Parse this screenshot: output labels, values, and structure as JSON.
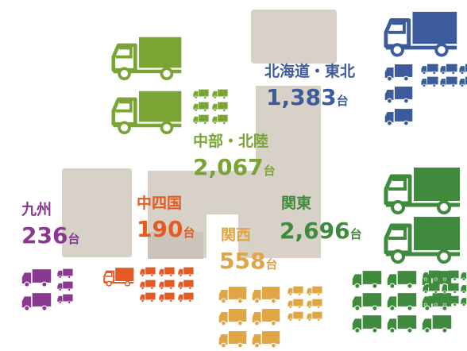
{
  "regions": [
    {
      "name": "北海道・東北",
      "count": "1,383",
      "unit": "台"
    },
    {
      "name": "中部・北陸",
      "count": "2,067",
      "unit": "台"
    },
    {
      "name": "関東",
      "count": "2,696",
      "unit": "台"
    },
    {
      "name": "中四国",
      "count": "190",
      "unit": "台"
    },
    {
      "name": "関西",
      "count": "558",
      "unit": "台"
    },
    {
      "name": "九州",
      "count": "236",
      "unit": "台"
    }
  ]
}
